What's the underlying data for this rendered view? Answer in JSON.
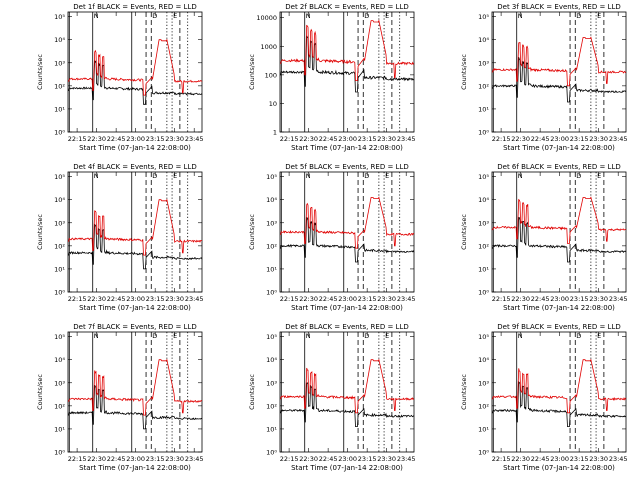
{
  "chart_data": {
    "type": "line",
    "yscale": "log",
    "ylabel": "Counts/sec",
    "xlabel": "Start Time (07-Jan-14 22:08:00)",
    "x_ticks": [
      "22:15",
      "22:30",
      "22:45",
      "23:00",
      "23:15",
      "23:30",
      "23:45"
    ],
    "x_tick_minutes": [
      7,
      22,
      37,
      52,
      67,
      82,
      97
    ],
    "x_range_minutes": [
      0,
      103
    ],
    "markers": [
      {
        "label": "",
        "style": "solid",
        "minutes": 1
      },
      {
        "label": "N",
        "style": "solid",
        "minutes": 19
      },
      {
        "label": "",
        "style": "solid",
        "minutes": 49
      },
      {
        "label": "",
        "style": "dashed",
        "minutes": 60
      },
      {
        "label": "D",
        "style": "dashed",
        "minutes": 64
      },
      {
        "label": "",
        "style": "dotted",
        "minutes": 76
      },
      {
        "label": "E",
        "style": "dotted",
        "minutes": 80
      },
      {
        "label": "",
        "style": "dashed",
        "minutes": 86
      },
      {
        "label": "",
        "style": "dotted",
        "minutes": 92
      }
    ],
    "series_colors": {
      "events": "#000000",
      "lld": "#e00000"
    },
    "panels": [
      {
        "title": "Det 1f BLACK = Events, RED = LLD",
        "y_ticks": [
          "10⁰",
          "10¹",
          "10²",
          "10³",
          "10⁴",
          "10⁵"
        ],
        "ylim_log": [
          0,
          5.2
        ],
        "events_base": 1.9,
        "lld_base": 2.3,
        "peak": 4.0,
        "markers": [
          0,
          1,
          2,
          3,
          4,
          5,
          6,
          7,
          8
        ]
      },
      {
        "title": "Det 2f BLACK = Events, RED = LLD",
        "y_ticks": [
          "1",
          "10",
          "100",
          "1000",
          "10000"
        ],
        "ylim_log": [
          0,
          4.2
        ],
        "events_base": 2.1,
        "lld_base": 2.5,
        "peak": 3.9,
        "markers": [
          0,
          1,
          2,
          3,
          4,
          5,
          6,
          7,
          8
        ]
      },
      {
        "title": "Det 3f BLACK = Events, RED = LLD",
        "y_ticks": [
          "10⁰",
          "10¹",
          "10²",
          "10³",
          "10⁴",
          "10⁵"
        ],
        "ylim_log": [
          0,
          5.2
        ],
        "events_base": 2.0,
        "lld_base": 2.7,
        "peak": 4.1,
        "markers": [
          0,
          1,
          3,
          4,
          5,
          6,
          7
        ]
      },
      {
        "title": "Det 4f BLACK = Events, RED = LLD",
        "y_ticks": [
          "10⁰",
          "10¹",
          "10²",
          "10³",
          "10⁴",
          "10⁵"
        ],
        "ylim_log": [
          0,
          5.2
        ],
        "events_base": 1.7,
        "lld_base": 2.3,
        "peak": 4.0,
        "markers": [
          0,
          1,
          2,
          3,
          4,
          5,
          6,
          7,
          8
        ]
      },
      {
        "title": "Det 5f BLACK = Events, RED = LLD",
        "y_ticks": [
          "10⁰",
          "10¹",
          "10²",
          "10³",
          "10⁴",
          "10⁵"
        ],
        "ylim_log": [
          0,
          5.2
        ],
        "events_base": 2.0,
        "lld_base": 2.6,
        "peak": 4.1,
        "markers": [
          0,
          1,
          2,
          3,
          4,
          5,
          6,
          7,
          8
        ]
      },
      {
        "title": "Det 6f BLACK = Events, RED = LLD",
        "y_ticks": [
          "10⁰",
          "10¹",
          "10²",
          "10³",
          "10⁴",
          "10⁵"
        ],
        "ylim_log": [
          0,
          5.2
        ],
        "events_base": 2.0,
        "lld_base": 2.8,
        "peak": 4.1,
        "markers": [
          0,
          1,
          3,
          4,
          5,
          6,
          7
        ]
      },
      {
        "title": "Det 7f BLACK = Events, RED = LLD",
        "y_ticks": [
          "10⁰",
          "10¹",
          "10²",
          "10³",
          "10⁴",
          "10⁵"
        ],
        "ylim_log": [
          0,
          5.2
        ],
        "events_base": 1.7,
        "lld_base": 2.3,
        "peak": 4.0,
        "markers": [
          0,
          1,
          2,
          3,
          4,
          5,
          6,
          7,
          8
        ]
      },
      {
        "title": "Det 8f BLACK = Events, RED = LLD",
        "y_ticks": [
          "10⁰",
          "10¹",
          "10²",
          "10³",
          "10⁴",
          "10⁵"
        ],
        "ylim_log": [
          0,
          5.2
        ],
        "events_base": 1.8,
        "lld_base": 2.4,
        "peak": 4.0,
        "markers": [
          0,
          1,
          2,
          3,
          4,
          5,
          6,
          7,
          8
        ]
      },
      {
        "title": "Det 9f BLACK = Events, RED = LLD",
        "y_ticks": [
          "10⁰",
          "10¹",
          "10²",
          "10³",
          "10⁴",
          "10⁵"
        ],
        "ylim_log": [
          0,
          5.2
        ],
        "events_base": 1.8,
        "lld_base": 2.4,
        "peak": 4.0,
        "markers": [
          0,
          1,
          3,
          4,
          5,
          6,
          7
        ]
      }
    ]
  }
}
